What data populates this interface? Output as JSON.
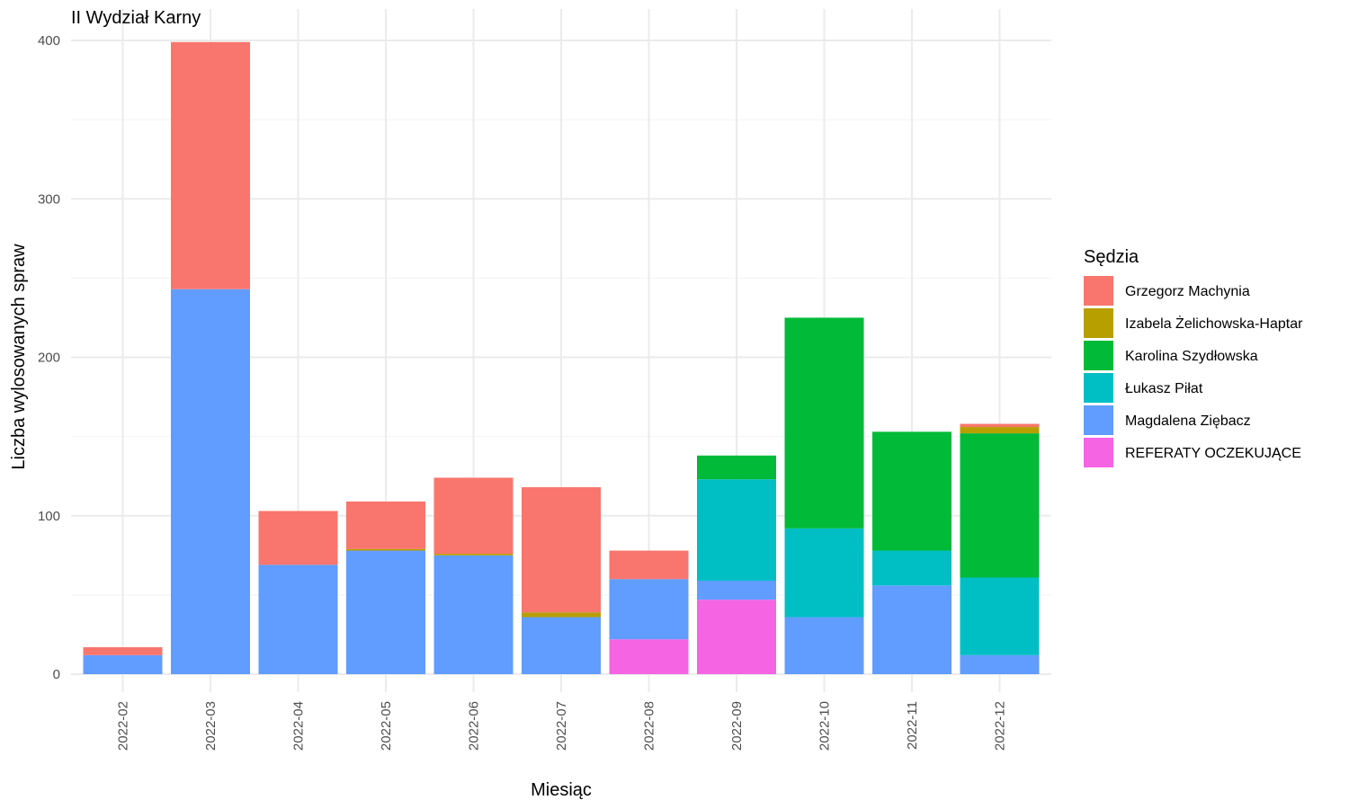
{
  "chart_data": {
    "type": "bar",
    "stacked": true,
    "title": "II Wydział Karny",
    "xlabel": "Miesiąc",
    "ylabel": "Liczba wylosowanych spraw",
    "ylim": [
      0,
      400
    ],
    "yticks": [
      0,
      100,
      200,
      300,
      400
    ],
    "grid": true,
    "legend": {
      "title": "Sędzia",
      "position": "right"
    },
    "categories": [
      "2022-02",
      "2022-03",
      "2022-04",
      "2022-05",
      "2022-06",
      "2022-07",
      "2022-08",
      "2022-09",
      "2022-10",
      "2022-11",
      "2022-12"
    ],
    "series": [
      {
        "name": "REFERATY OCZEKUJĄCE",
        "color": "#F564E3",
        "values": [
          0,
          0,
          0,
          0,
          0,
          0,
          22,
          47,
          0,
          0,
          0
        ]
      },
      {
        "name": "Magdalena Ziębacz",
        "color": "#619CFF",
        "values": [
          12,
          243,
          69,
          78,
          75,
          36,
          38,
          12,
          36,
          56,
          12
        ]
      },
      {
        "name": "Łukasz Piłat",
        "color": "#00BFC4",
        "values": [
          0,
          0,
          0,
          0,
          0,
          0,
          0,
          64,
          56,
          22,
          49
        ]
      },
      {
        "name": "Karolina Szydłowska",
        "color": "#00BA38",
        "values": [
          0,
          0,
          0,
          0,
          0,
          0,
          0,
          15,
          133,
          75,
          91
        ]
      },
      {
        "name": "Izabela Żelichowska-Haptar",
        "color": "#B79F00",
        "values": [
          0,
          0,
          0,
          1,
          1,
          3,
          0,
          0,
          0,
          0,
          4
        ]
      },
      {
        "name": "Grzegorz Machynia",
        "color": "#F8766D",
        "values": [
          5,
          156,
          34,
          30,
          48,
          79,
          18,
          0,
          0,
          0,
          2
        ]
      }
    ],
    "legend_order": [
      "Grzegorz Machynia",
      "Izabela Żelichowska-Haptar",
      "Karolina Szydłowska",
      "Łukasz Piłat",
      "Magdalena Ziębacz",
      "REFERATY OCZEKUJĄCE"
    ]
  }
}
